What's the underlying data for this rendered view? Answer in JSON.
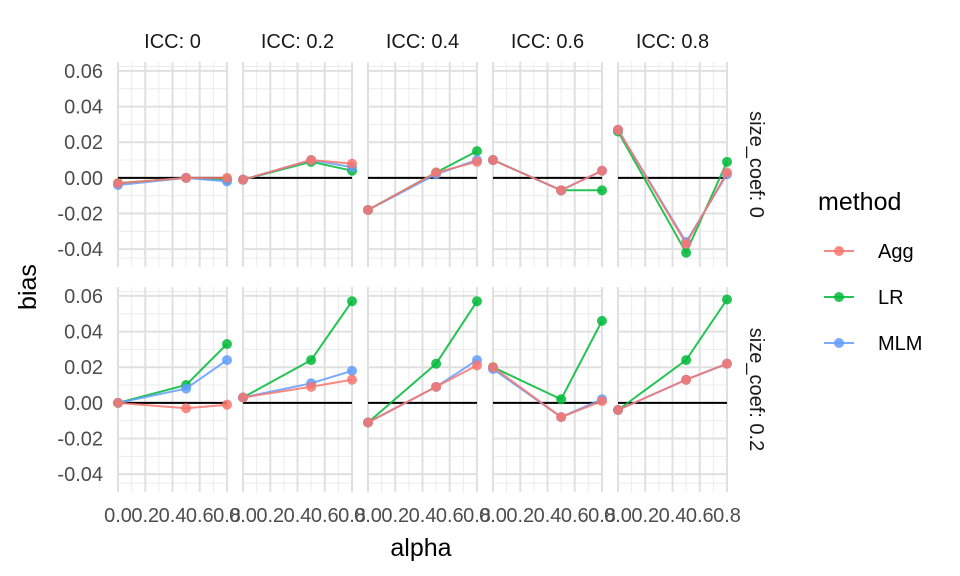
{
  "chart_data": {
    "type": "line",
    "facet_cols_label": "ICC",
    "facet_rows_label": "size_coef",
    "facet_cols": [
      "ICC: 0",
      "ICC: 0.2",
      "ICC: 0.4",
      "ICC: 0.6",
      "ICC: 0.8"
    ],
    "facet_rows": [
      "size_coef: 0",
      "size_coef: 0.2"
    ],
    "xlabel": "alpha",
    "ylabel": "bias",
    "x": [
      0.0,
      0.5,
      0.8
    ],
    "xlim": [
      0.0,
      0.8
    ],
    "ylim": [
      -0.05,
      0.065
    ],
    "x_ticks": [
      0.0,
      0.2,
      0.4,
      0.6,
      0.8
    ],
    "x_tick_labels": [
      "0.0",
      "0.2",
      "0.4",
      "0.6",
      "0.8"
    ],
    "y_ticks": [
      -0.04,
      -0.02,
      0.0,
      0.02,
      0.04,
      0.06
    ],
    "y_tick_labels": [
      "-0.04",
      "-0.02",
      "0.00",
      "0.02",
      "0.04",
      "0.06"
    ],
    "reference_line": 0,
    "grid": true,
    "legend": {
      "title": "method",
      "position": "right",
      "entries": [
        {
          "name": "Agg",
          "color": "#F8766D"
        },
        {
          "name": "LR",
          "color": "#00BA38"
        },
        {
          "name": "MLM",
          "color": "#619CFF"
        }
      ]
    },
    "panels": [
      {
        "row": 0,
        "col": 0,
        "series": {
          "Agg": [
            -0.003,
            0.0,
            0.0
          ],
          "LR": [
            -0.003,
            0.0,
            -0.001
          ],
          "MLM": [
            -0.004,
            0.0,
            -0.002
          ]
        }
      },
      {
        "row": 0,
        "col": 1,
        "series": {
          "Agg": [
            -0.001,
            0.01,
            0.008
          ],
          "LR": [
            -0.001,
            0.009,
            0.004
          ],
          "MLM": [
            -0.001,
            0.01,
            0.006
          ]
        }
      },
      {
        "row": 0,
        "col": 2,
        "series": {
          "Agg": [
            -0.018,
            0.003,
            0.009
          ],
          "LR": [
            -0.018,
            0.003,
            0.015
          ],
          "MLM": [
            -0.018,
            0.002,
            0.01
          ]
        }
      },
      {
        "row": 0,
        "col": 3,
        "series": {
          "Agg": [
            0.01,
            -0.007,
            0.004
          ],
          "LR": [
            0.01,
            -0.007,
            -0.007
          ],
          "MLM": [
            0.01,
            -0.007,
            0.004
          ]
        }
      },
      {
        "row": 0,
        "col": 4,
        "series": {
          "Agg": [
            0.027,
            -0.037,
            0.003
          ],
          "LR": [
            0.026,
            -0.042,
            0.009
          ],
          "MLM": [
            0.027,
            -0.036,
            0.002
          ]
        }
      },
      {
        "row": 1,
        "col": 0,
        "series": {
          "Agg": [
            0.0,
            -0.003,
            -0.001
          ],
          "LR": [
            0.0,
            0.01,
            0.033
          ],
          "MLM": [
            0.0,
            0.008,
            0.024
          ]
        }
      },
      {
        "row": 1,
        "col": 1,
        "series": {
          "Agg": [
            0.003,
            0.009,
            0.013
          ],
          "LR": [
            0.003,
            0.024,
            0.057
          ],
          "MLM": [
            0.003,
            0.011,
            0.018
          ]
        }
      },
      {
        "row": 1,
        "col": 2,
        "series": {
          "Agg": [
            -0.011,
            0.009,
            0.021
          ],
          "LR": [
            -0.011,
            0.022,
            0.057
          ],
          "MLM": [
            -0.011,
            0.009,
            0.024
          ]
        }
      },
      {
        "row": 1,
        "col": 3,
        "series": {
          "Agg": [
            0.02,
            -0.008,
            0.001
          ],
          "LR": [
            0.02,
            0.002,
            0.046
          ],
          "MLM": [
            0.019,
            -0.008,
            0.002
          ]
        }
      },
      {
        "row": 1,
        "col": 4,
        "series": {
          "Agg": [
            -0.004,
            0.013,
            0.022
          ],
          "LR": [
            -0.004,
            0.024,
            0.058
          ],
          "MLM": [
            -0.004,
            0.013,
            0.022
          ]
        }
      }
    ]
  }
}
